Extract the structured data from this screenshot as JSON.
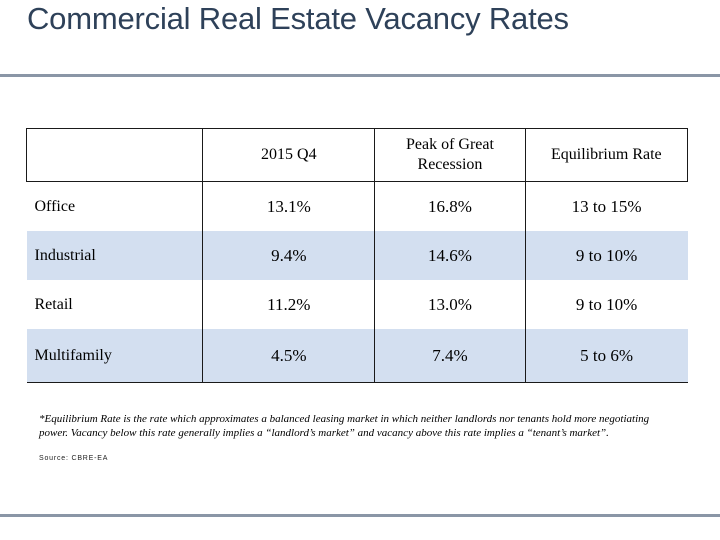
{
  "title": "Commercial Real Estate Vacancy Rates",
  "table": {
    "headers": [
      "",
      "2015 Q4",
      "Peak of Great Recession",
      "Equilibrium Rate"
    ],
    "rows": [
      {
        "label": "Office",
        "q4": "13.1%",
        "peak": "16.8%",
        "eq": "13 to 15%"
      },
      {
        "label": "Industrial",
        "q4": "9.4%",
        "peak": "14.6%",
        "eq": "9 to 10%"
      },
      {
        "label": "Retail",
        "q4": "11.2%",
        "peak": "13.0%",
        "eq": "9 to 10%"
      },
      {
        "label": "Multifamily",
        "q4": "4.5%",
        "peak": "7.4%",
        "eq": "5 to 6%"
      }
    ]
  },
  "footnote": "*Equilibrium Rate is the rate which approximates a balanced leasing market in which neither landlords nor tenants hold more negotiating power. Vacancy below this rate generally implies a “landlord’s market” and vacancy above this rate implies a “tenant’s market”.",
  "source": "Source: CBRE-EA",
  "colors": {
    "title": "#2e4159",
    "rule": "#8a96a6",
    "band": "#d3dff0"
  }
}
